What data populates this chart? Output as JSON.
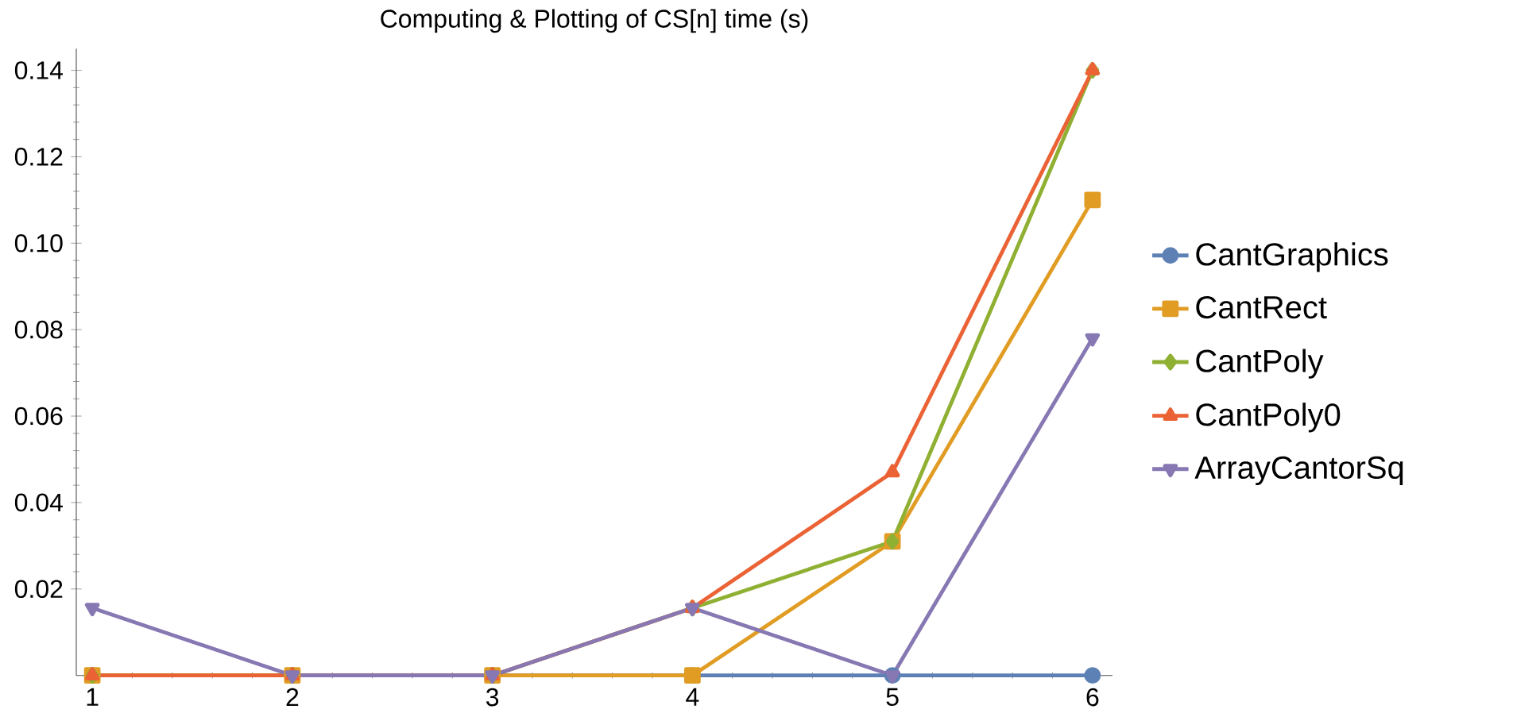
{
  "chart_data": {
    "type": "line",
    "title": "Computing & Plotting of CS[n] time (s)",
    "x": [
      1,
      2,
      3,
      4,
      5,
      6
    ],
    "series": [
      {
        "name": "CantGraphics",
        "color": "#5e81b5",
        "marker": "circle",
        "values": [
          0,
          0,
          0,
          0,
          0,
          0
        ]
      },
      {
        "name": "CantRect",
        "color": "#e19c24",
        "marker": "square",
        "values": [
          0,
          0,
          0,
          0,
          0.031,
          0.11
        ]
      },
      {
        "name": "CantPoly",
        "color": "#8fb032",
        "marker": "diamond",
        "values": [
          0,
          0,
          0,
          0.0156,
          0.031,
          0.14
        ]
      },
      {
        "name": "CantPoly0",
        "color": "#eb6235",
        "marker": "triangle",
        "values": [
          0,
          0,
          0,
          0.0156,
          0.047,
          0.14
        ]
      },
      {
        "name": "ArrayCantorSq",
        "color": "#8778b3",
        "marker": "triangle down",
        "values": [
          0.0156,
          0,
          0,
          0.0156,
          0,
          0.078
        ]
      }
    ],
    "xlim": [
      0.92,
      6.1
    ],
    "ylim": [
      0,
      0.145
    ],
    "xticks": [
      1,
      2,
      3,
      4,
      5,
      6
    ],
    "yticks": [
      {
        "value": 0.02,
        "label": "0.02"
      },
      {
        "value": 0.04,
        "label": "0.04"
      },
      {
        "value": 0.06,
        "label": "0.06"
      },
      {
        "value": 0.08,
        "label": "0.08"
      },
      {
        "value": 0.1,
        "label": "0.10"
      },
      {
        "value": 0.12,
        "label": "0.12"
      },
      {
        "value": 0.14,
        "label": "0.14"
      }
    ],
    "grid": false,
    "legend": "right",
    "line_style": "solid"
  }
}
